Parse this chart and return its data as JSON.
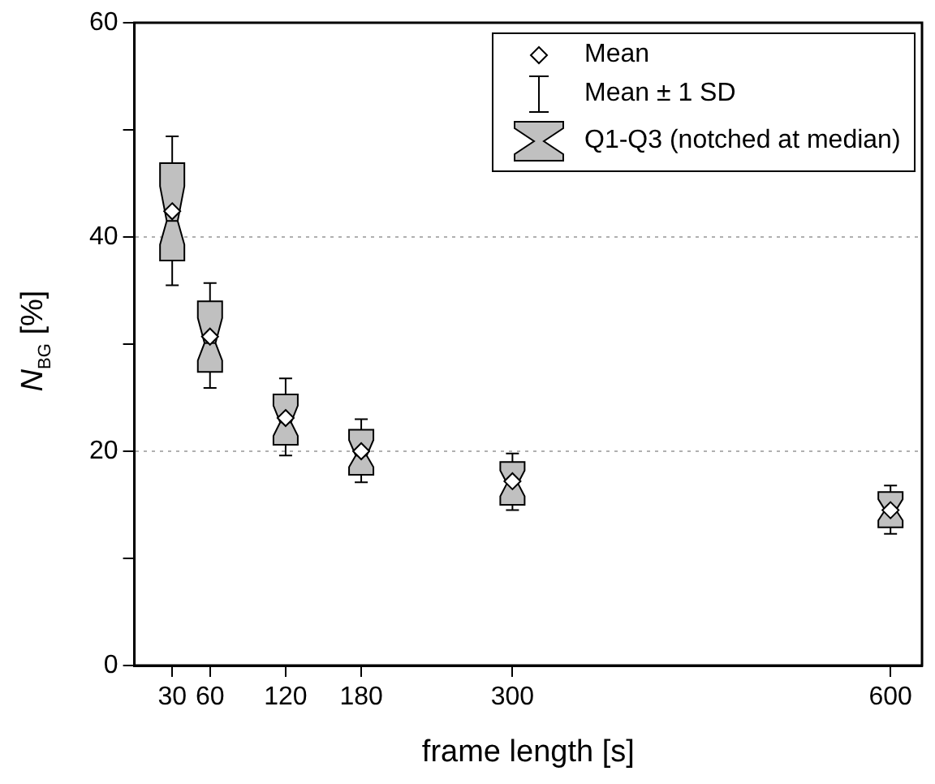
{
  "chart_data": {
    "type": "box",
    "xlabel": "frame length [s]",
    "ylabel": "N$_{BG}$ [%]",
    "x": [
      30,
      60,
      120,
      180,
      300,
      600
    ],
    "xlim": [
      0,
      625
    ],
    "xticks": [
      30,
      60,
      120,
      180,
      300,
      600
    ],
    "ylim": [
      0,
      60
    ],
    "yticks": [
      0,
      {
        "value": 10,
        "label": null
      },
      20,
      {
        "value": 30,
        "label": null
      },
      40,
      {
        "value": 50,
        "label": null
      },
      60
    ],
    "grid": "y",
    "legend": "top right",
    "annotations": [
      "Mean",
      "Mean ± 1 SD"
    ],
    "series": [
      {
        "name": "Q1-Q3 (notched at median)",
        "color": "#c0c0c0",
        "boxes": [
          {
            "low": 35.5,
            "q1": 37.8,
            "median": 41.5,
            "q3": 46.9,
            "high": 49.4,
            "mean": 42.4
          },
          {
            "low": 25.9,
            "q1": 27.4,
            "median": 30.1,
            "q3": 34.0,
            "high": 35.7,
            "mean": 30.7
          },
          {
            "low": 19.6,
            "q1": 20.6,
            "median": 22.7,
            "q3": 25.3,
            "high": 26.8,
            "mean": 23.1
          },
          {
            "low": 17.1,
            "q1": 17.8,
            "median": 19.6,
            "q3": 22.0,
            "high": 23.0,
            "mean": 20.0
          },
          {
            "low": 14.5,
            "q1": 15.0,
            "median": 17.0,
            "q3": 19.0,
            "high": 19.8,
            "mean": 17.2
          },
          {
            "low": 12.3,
            "q1": 12.9,
            "median": 14.5,
            "q3": 16.2,
            "high": 16.8,
            "mean": 14.5
          }
        ]
      }
    ]
  }
}
